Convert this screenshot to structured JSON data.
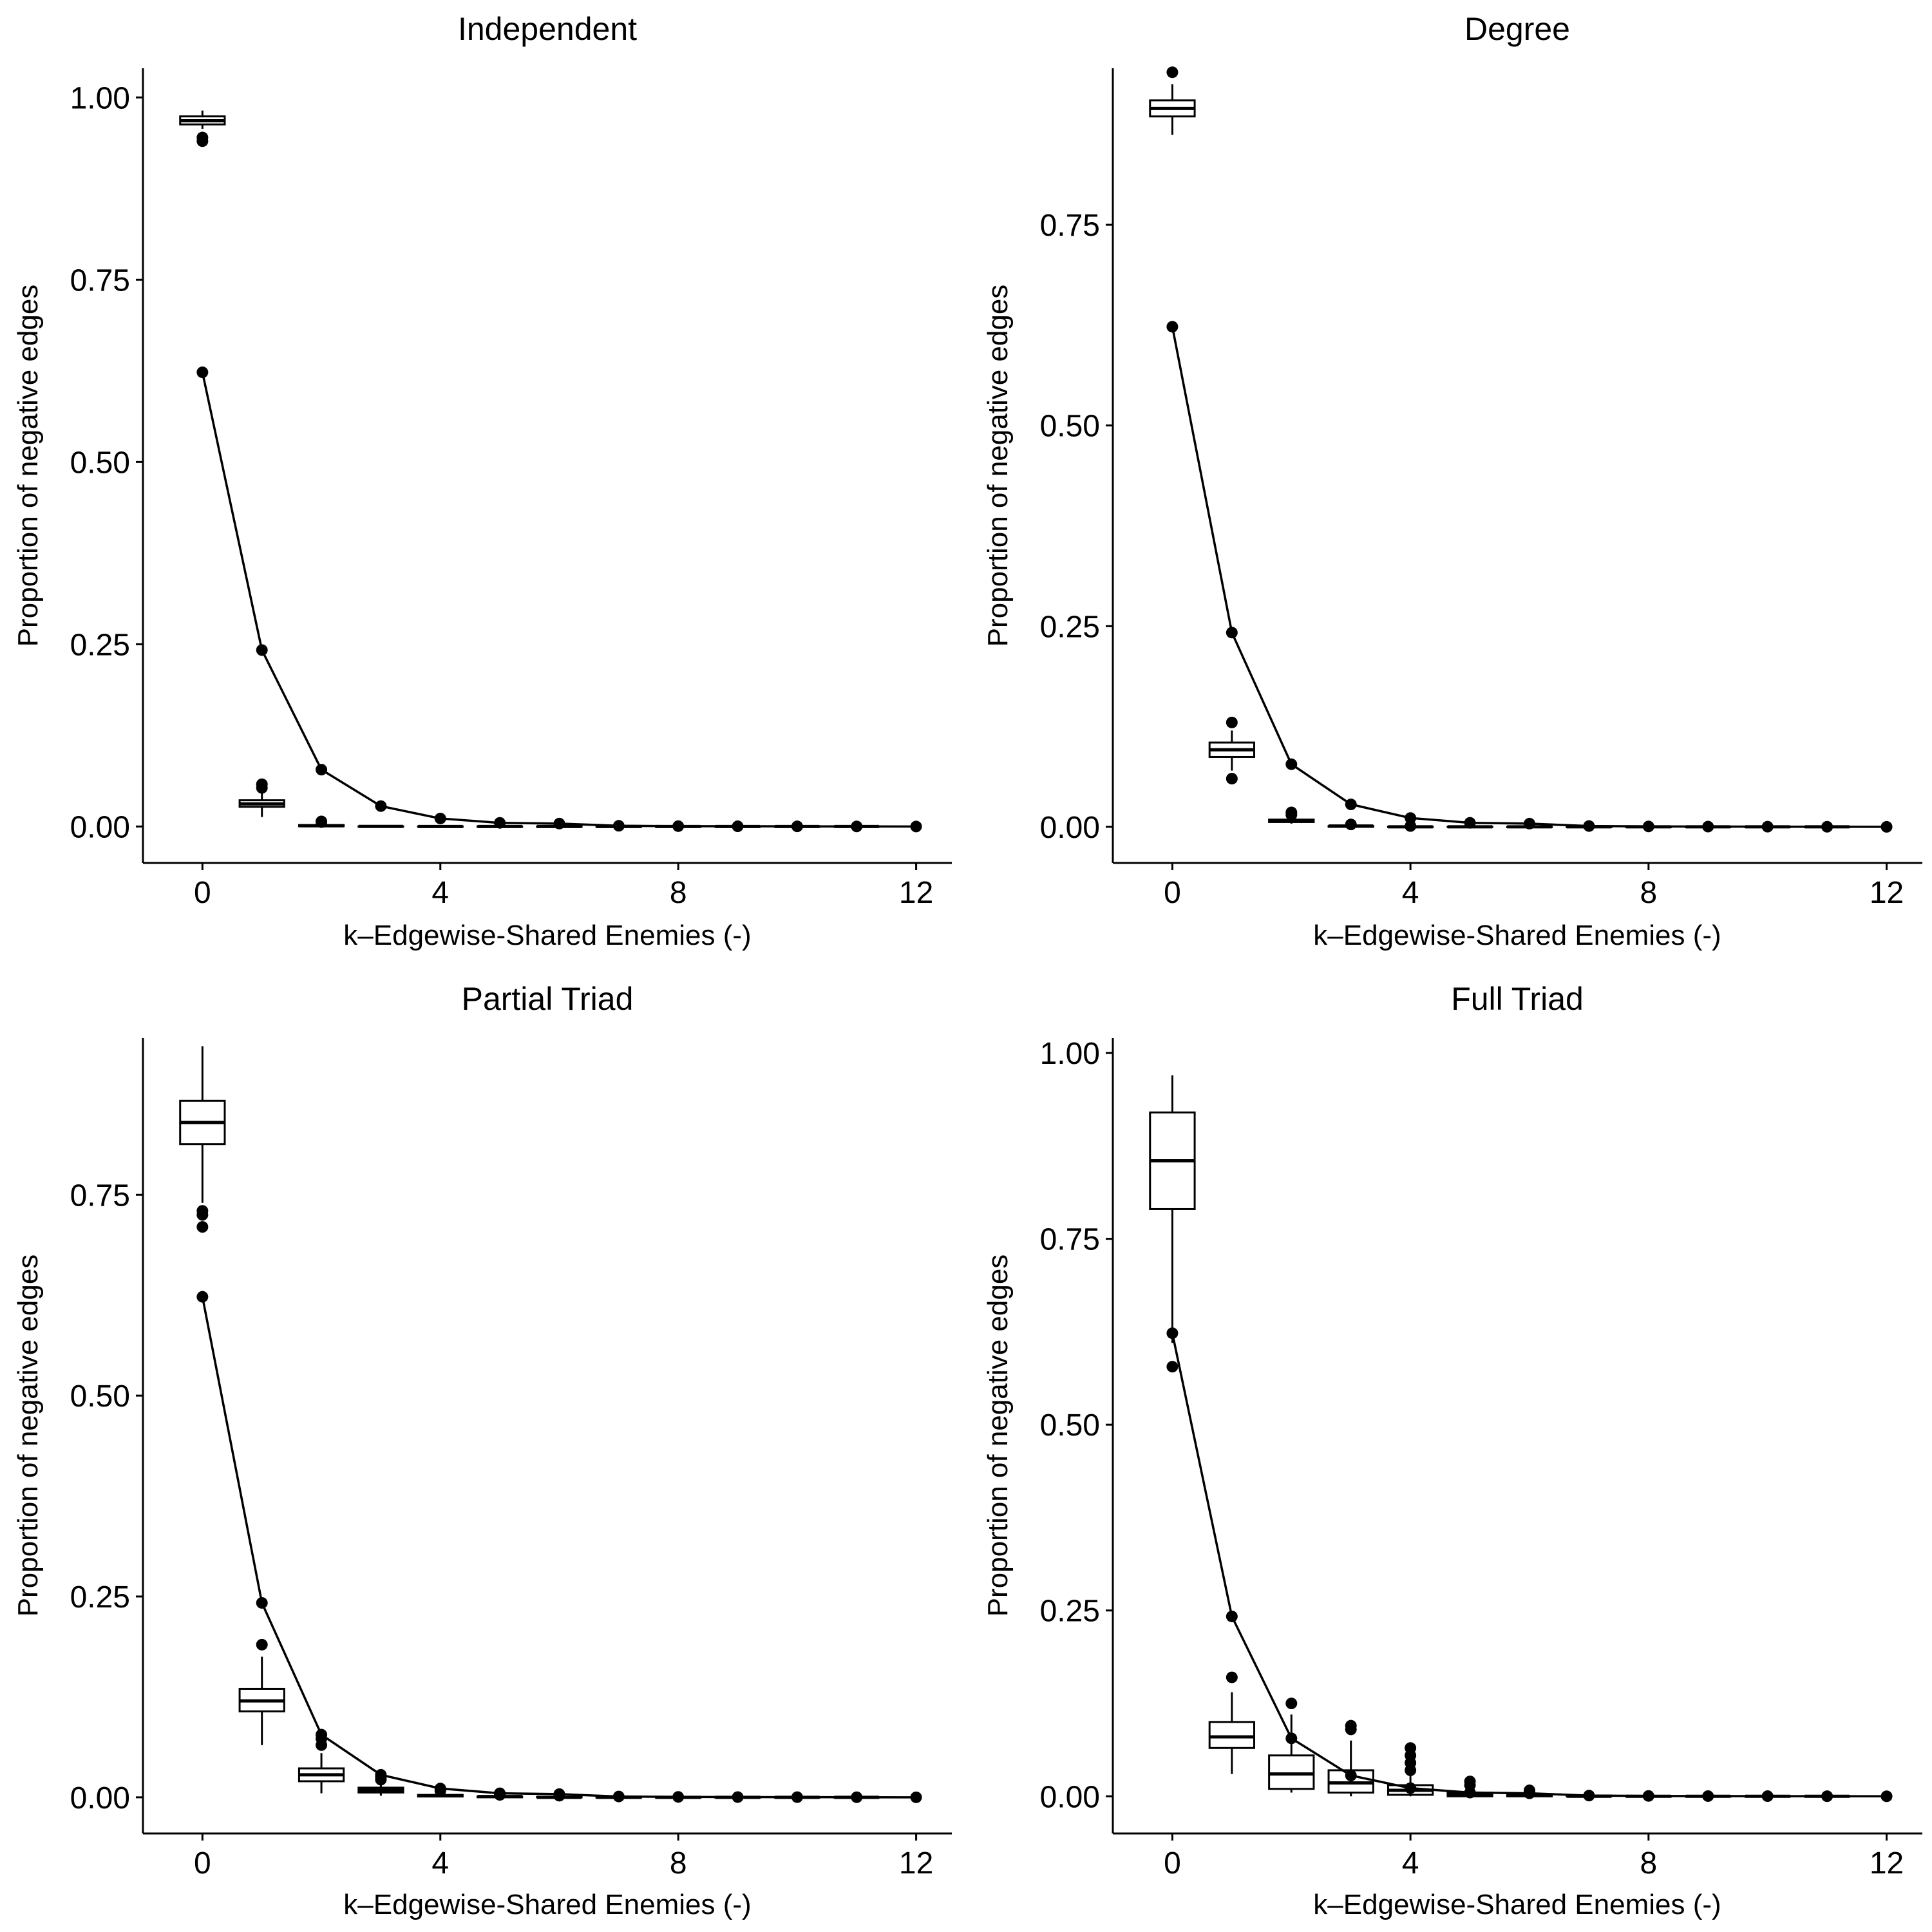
{
  "figure": {
    "background": "#ffffff",
    "ink": "#000000",
    "box_fill": "#ffffff"
  },
  "chart_data": [
    {
      "type": "box+line",
      "title": "Independent",
      "xlabel": "k–Edgewise-Shared Enemies (-)",
      "ylabel": "Proportion of negative edges",
      "xlim": [
        -1,
        12.6
      ],
      "ylim": [
        -0.05,
        1.04
      ],
      "xticks": [
        0,
        4,
        8,
        12
      ],
      "xtick_labels": [
        "0",
        "4",
        "8",
        "12"
      ],
      "yticks": [
        0,
        0.25,
        0.5,
        0.75,
        1.0
      ],
      "ytick_labels": [
        "0.00",
        "0.25",
        "0.50",
        "0.75",
        "1.00"
      ],
      "observed": {
        "x": [
          0,
          1,
          2,
          3,
          4,
          5,
          6,
          7,
          8,
          9,
          10,
          11,
          12
        ],
        "y": [
          0.623,
          0.242,
          0.078,
          0.028,
          0.011,
          0.005,
          0.004,
          0.001,
          0.0005,
          0.0003,
          0.0002,
          0.0001,
          0.0
        ]
      },
      "boxes": [
        {
          "k": 0,
          "whislo": 0.957,
          "q1": 0.963,
          "med": 0.968,
          "q3": 0.974,
          "whishi": 0.982,
          "outliers": [
            0.945,
            0.94
          ]
        },
        {
          "k": 1,
          "whislo": 0.013,
          "q1": 0.027,
          "med": 0.031,
          "q3": 0.036,
          "whishi": 0.048,
          "outliers": [
            0.053,
            0.058
          ]
        },
        {
          "k": 2,
          "whislo": 0.0,
          "q1": 0.0005,
          "med": 0.001,
          "q3": 0.002,
          "whishi": 0.004,
          "outliers": [
            0.006,
            0.007
          ]
        },
        {
          "k": 3,
          "whislo": 0.0,
          "q1": 0.0,
          "med": 0.0001,
          "q3": 0.0002,
          "whishi": 0.0005,
          "outliers": []
        },
        {
          "k": 4,
          "whislo": 0.0,
          "q1": 0.0,
          "med": 0.0,
          "q3": 0.0001,
          "whishi": 0.0003,
          "outliers": []
        },
        {
          "k": 5,
          "whislo": 0.0,
          "q1": 0.0,
          "med": 0.0,
          "q3": 0.0001,
          "whishi": 0.0002,
          "outliers": []
        },
        {
          "k": 6,
          "whislo": 0.0,
          "q1": 0.0,
          "med": 0.0,
          "q3": 0.0,
          "whishi": 0.0001,
          "outliers": []
        },
        {
          "k": 7,
          "whislo": 0.0,
          "q1": 0.0,
          "med": 0.0,
          "q3": 0.0,
          "whishi": 0.0001,
          "outliers": []
        },
        {
          "k": 8,
          "whislo": 0.0,
          "q1": 0.0,
          "med": 0.0,
          "q3": 0.0,
          "whishi": 0.0,
          "outliers": []
        },
        {
          "k": 9,
          "whislo": 0.0,
          "q1": 0.0,
          "med": 0.0,
          "q3": 0.0,
          "whishi": 0.0,
          "outliers": []
        },
        {
          "k": 10,
          "whislo": 0.0,
          "q1": 0.0,
          "med": 0.0,
          "q3": 0.0,
          "whishi": 0.0,
          "outliers": []
        },
        {
          "k": 11,
          "whislo": 0.0,
          "q1": 0.0,
          "med": 0.0,
          "q3": 0.0,
          "whishi": 0.0,
          "outliers": []
        }
      ]
    },
    {
      "type": "box+line",
      "title": "Degree",
      "xlabel": "k–Edgewise-Shared Enemies (-)",
      "ylabel": "Proportion of negative edges",
      "xlim": [
        -1,
        12.6
      ],
      "ylim": [
        -0.045,
        0.945
      ],
      "xticks": [
        0,
        4,
        8,
        12
      ],
      "xtick_labels": [
        "0",
        "4",
        "8",
        "12"
      ],
      "yticks": [
        0,
        0.25,
        0.5,
        0.75
      ],
      "ytick_labels": [
        "0.00",
        "0.25",
        "0.50",
        "0.75"
      ],
      "observed": {
        "x": [
          0,
          1,
          2,
          3,
          4,
          5,
          6,
          7,
          8,
          9,
          10,
          11,
          12
        ],
        "y": [
          0.623,
          0.242,
          0.078,
          0.028,
          0.011,
          0.005,
          0.004,
          0.001,
          0.0005,
          0.0003,
          0.0002,
          0.0001,
          0.0
        ]
      },
      "boxes": [
        {
          "k": 0,
          "whislo": 0.862,
          "q1": 0.885,
          "med": 0.895,
          "q3": 0.905,
          "whishi": 0.925,
          "outliers": [
            0.94
          ]
        },
        {
          "k": 1,
          "whislo": 0.07,
          "q1": 0.087,
          "med": 0.096,
          "q3": 0.105,
          "whishi": 0.12,
          "outliers": [
            0.06,
            0.13
          ]
        },
        {
          "k": 2,
          "whislo": 0.004,
          "q1": 0.006,
          "med": 0.008,
          "q3": 0.009,
          "whishi": 0.012,
          "outliers": [
            0.015,
            0.018
          ]
        },
        {
          "k": 3,
          "whislo": 0.0,
          "q1": 0.0,
          "med": 0.001,
          "q3": 0.001,
          "whishi": 0.002,
          "outliers": [
            0.003
          ]
        },
        {
          "k": 4,
          "whislo": 0.0,
          "q1": 0.0,
          "med": 0.0,
          "q3": 0.0001,
          "whishi": 0.0003,
          "outliers": [
            0.001
          ]
        },
        {
          "k": 5,
          "whislo": 0.0,
          "q1": 0.0,
          "med": 0.0,
          "q3": 0.0001,
          "whishi": 0.0002,
          "outliers": []
        },
        {
          "k": 6,
          "whislo": 0.0,
          "q1": 0.0,
          "med": 0.0,
          "q3": 0.0,
          "whishi": 0.0001,
          "outliers": []
        },
        {
          "k": 7,
          "whislo": 0.0,
          "q1": 0.0,
          "med": 0.0,
          "q3": 0.0,
          "whishi": 0.0001,
          "outliers": []
        },
        {
          "k": 8,
          "whislo": 0.0,
          "q1": 0.0,
          "med": 0.0,
          "q3": 0.0,
          "whishi": 0.0,
          "outliers": []
        },
        {
          "k": 9,
          "whislo": 0.0,
          "q1": 0.0,
          "med": 0.0,
          "q3": 0.0,
          "whishi": 0.0,
          "outliers": []
        },
        {
          "k": 10,
          "whislo": 0.0,
          "q1": 0.0,
          "med": 0.0,
          "q3": 0.0,
          "whishi": 0.0,
          "outliers": []
        },
        {
          "k": 11,
          "whislo": 0.0,
          "q1": 0.0,
          "med": 0.0,
          "q3": 0.0,
          "whishi": 0.0,
          "outliers": []
        }
      ]
    },
    {
      "type": "box+line",
      "title": "Partial Triad",
      "xlabel": "k–Edgewise-Shared Enemies (-)",
      "ylabel": "Proportion of negative edges",
      "xlim": [
        -1,
        12.6
      ],
      "ylim": [
        -0.045,
        0.945
      ],
      "xticks": [
        0,
        4,
        8,
        12
      ],
      "xtick_labels": [
        "0",
        "4",
        "8",
        "12"
      ],
      "yticks": [
        0,
        0.25,
        0.5,
        0.75
      ],
      "ytick_labels": [
        "0.00",
        "0.25",
        "0.50",
        "0.75"
      ],
      "observed": {
        "x": [
          0,
          1,
          2,
          3,
          4,
          5,
          6,
          7,
          8,
          9,
          10,
          11,
          12
        ],
        "y": [
          0.623,
          0.242,
          0.078,
          0.028,
          0.011,
          0.005,
          0.004,
          0.001,
          0.0005,
          0.0003,
          0.0002,
          0.0001,
          0.0
        ]
      },
      "boxes": [
        {
          "k": 0,
          "whislo": 0.74,
          "q1": 0.813,
          "med": 0.84,
          "q3": 0.867,
          "whishi": 0.935,
          "outliers": [
            0.73,
            0.725,
            0.71
          ]
        },
        {
          "k": 1,
          "whislo": 0.065,
          "q1": 0.107,
          "med": 0.12,
          "q3": 0.135,
          "whishi": 0.175,
          "outliers": [
            0.19
          ]
        },
        {
          "k": 2,
          "whislo": 0.005,
          "q1": 0.02,
          "med": 0.028,
          "q3": 0.036,
          "whishi": 0.055,
          "outliers": [
            0.065,
            0.073
          ]
        },
        {
          "k": 3,
          "whislo": 0.002,
          "q1": 0.006,
          "med": 0.009,
          "q3": 0.012,
          "whishi": 0.018,
          "outliers": [
            0.022,
            0.025
          ]
        },
        {
          "k": 4,
          "whislo": 0.0,
          "q1": 0.001,
          "med": 0.002,
          "q3": 0.003,
          "whishi": 0.005,
          "outliers": [
            0.008
          ]
        },
        {
          "k": 5,
          "whislo": 0.0,
          "q1": 0.0,
          "med": 0.001,
          "q3": 0.001,
          "whishi": 0.002,
          "outliers": [
            0.003
          ]
        },
        {
          "k": 6,
          "whislo": 0.0,
          "q1": 0.0,
          "med": 0.0,
          "q3": 0.0005,
          "whishi": 0.001,
          "outliers": [
            0.002
          ]
        },
        {
          "k": 7,
          "whislo": 0.0,
          "q1": 0.0,
          "med": 0.0,
          "q3": 0.0,
          "whishi": 0.0003,
          "outliers": []
        },
        {
          "k": 8,
          "whislo": 0.0,
          "q1": 0.0,
          "med": 0.0,
          "q3": 0.0,
          "whishi": 0.0001,
          "outliers": []
        },
        {
          "k": 9,
          "whislo": 0.0,
          "q1": 0.0,
          "med": 0.0,
          "q3": 0.0,
          "whishi": 0.0,
          "outliers": []
        },
        {
          "k": 10,
          "whislo": 0.0,
          "q1": 0.0,
          "med": 0.0,
          "q3": 0.0,
          "whishi": 0.0,
          "outliers": []
        },
        {
          "k": 11,
          "whislo": 0.0,
          "q1": 0.0,
          "med": 0.0,
          "q3": 0.0,
          "whishi": 0.0,
          "outliers": []
        }
      ]
    },
    {
      "type": "box+line",
      "title": "Full Triad",
      "xlabel": "k–Edgewise-Shared Enemies (-)",
      "ylabel": "Proportion of negative edges",
      "xlim": [
        -1,
        12.6
      ],
      "ylim": [
        -0.05,
        1.02
      ],
      "xticks": [
        0,
        4,
        8,
        12
      ],
      "xtick_labels": [
        "0",
        "4",
        "8",
        "12"
      ],
      "yticks": [
        0,
        0.25,
        0.5,
        0.75,
        1.0
      ],
      "ytick_labels": [
        "0.00",
        "0.25",
        "0.50",
        "0.75",
        "1.00"
      ],
      "observed": {
        "x": [
          0,
          1,
          2,
          3,
          4,
          5,
          6,
          7,
          8,
          9,
          10,
          11,
          12
        ],
        "y": [
          0.623,
          0.242,
          0.078,
          0.028,
          0.011,
          0.005,
          0.004,
          0.001,
          0.0005,
          0.0003,
          0.0002,
          0.0001,
          0.0
        ]
      },
      "boxes": [
        {
          "k": 0,
          "whislo": 0.61,
          "q1": 0.79,
          "med": 0.855,
          "q3": 0.92,
          "whishi": 0.97,
          "outliers": [
            0.578
          ]
        },
        {
          "k": 1,
          "whislo": 0.03,
          "q1": 0.065,
          "med": 0.08,
          "q3": 0.1,
          "whishi": 0.14,
          "outliers": [
            0.16
          ]
        },
        {
          "k": 2,
          "whislo": 0.005,
          "q1": 0.01,
          "med": 0.03,
          "q3": 0.055,
          "whishi": 0.11,
          "outliers": [
            0.125
          ]
        },
        {
          "k": 3,
          "whislo": 0.0,
          "q1": 0.005,
          "med": 0.018,
          "q3": 0.035,
          "whishi": 0.075,
          "outliers": [
            0.09,
            0.095
          ]
        },
        {
          "k": 4,
          "whislo": 0.0,
          "q1": 0.002,
          "med": 0.008,
          "q3": 0.015,
          "whishi": 0.03,
          "outliers": [
            0.035,
            0.045,
            0.055,
            0.065
          ]
        },
        {
          "k": 5,
          "whislo": 0.0,
          "q1": 0.0,
          "med": 0.002,
          "q3": 0.005,
          "whishi": 0.01,
          "outliers": [
            0.015,
            0.02
          ]
        },
        {
          "k": 6,
          "whislo": 0.0,
          "q1": 0.0,
          "med": 0.001,
          "q3": 0.002,
          "whishi": 0.004,
          "outliers": [
            0.006,
            0.008
          ]
        },
        {
          "k": 7,
          "whislo": 0.0,
          "q1": 0.0,
          "med": 0.0,
          "q3": 0.001,
          "whishi": 0.002,
          "outliers": []
        },
        {
          "k": 8,
          "whislo": 0.0,
          "q1": 0.0,
          "med": 0.0,
          "q3": 0.0,
          "whishi": 0.001,
          "outliers": []
        },
        {
          "k": 9,
          "whislo": 0.0,
          "q1": 0.0,
          "med": 0.0,
          "q3": 0.0,
          "whishi": 0.0005,
          "outliers": []
        },
        {
          "k": 10,
          "whislo": 0.0,
          "q1": 0.0,
          "med": 0.0,
          "q3": 0.0,
          "whishi": 0.0,
          "outliers": []
        },
        {
          "k": 11,
          "whislo": 0.0,
          "q1": 0.0,
          "med": 0.0,
          "q3": 0.0,
          "whishi": 0.0,
          "outliers": []
        }
      ]
    }
  ]
}
